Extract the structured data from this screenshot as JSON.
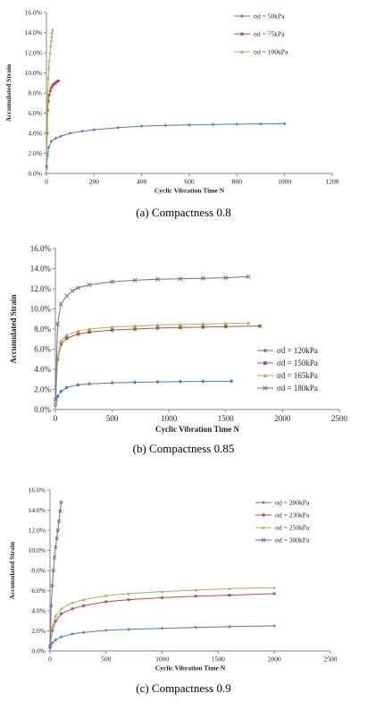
{
  "figure": {
    "captions": [
      "(a) Compactness 0.8",
      "(b) Compactness 0.85",
      "(c) Compactness 0.9"
    ]
  },
  "chart_data": [
    {
      "type": "line",
      "xlabel": "Cyclic Vibration Time N",
      "ylabel": "Accumulated Strain",
      "xlim": [
        0,
        1200
      ],
      "ylim": [
        0,
        16
      ],
      "xticks": [
        0,
        200,
        400,
        600,
        800,
        1000,
        1200
      ],
      "xtick_labels": [
        "0",
        "200",
        "400",
        "600",
        "800",
        "1000",
        "1200"
      ],
      "yticks": [
        0,
        2,
        4,
        6,
        8,
        10,
        12,
        14,
        16
      ],
      "ytick_labels": [
        "0.0%",
        "2.0%",
        "4.0%",
        "6.0%",
        "8.0%",
        "10.0%",
        "12.0%",
        "14.0%",
        "16.0%"
      ],
      "grid": false,
      "legend_position": "top-right",
      "series": [
        {
          "name": "σd = 50kPa",
          "color": "#4a7ebb",
          "marker": "diamond",
          "x": [
            1,
            5,
            10,
            20,
            40,
            60,
            100,
            150,
            200,
            300,
            400,
            500,
            600,
            700,
            800,
            900,
            1000
          ],
          "y": [
            0.6,
            1.8,
            2.6,
            3.2,
            3.5,
            3.7,
            4.0,
            4.2,
            4.35,
            4.55,
            4.7,
            4.78,
            4.83,
            4.87,
            4.9,
            4.93,
            4.95
          ]
        },
        {
          "name": "σd = 75kPa",
          "color": "#be4b48",
          "marker": "square",
          "x": [
            1,
            3,
            5,
            8,
            12,
            16,
            20,
            25,
            30,
            35,
            40,
            45,
            50
          ],
          "y": [
            0.7,
            4.0,
            6.3,
            7.2,
            7.8,
            8.2,
            8.5,
            8.7,
            8.85,
            8.95,
            9.05,
            9.15,
            9.2
          ]
        },
        {
          "name": "σd = 100kPa",
          "color": "#98b954",
          "marker": "triangle",
          "x": [
            1,
            3,
            5,
            8,
            10,
            12,
            15,
            18,
            20,
            22,
            24,
            26
          ],
          "y": [
            0.5,
            4.5,
            7.5,
            9.5,
            10.5,
            11.2,
            12.0,
            12.7,
            13.2,
            13.6,
            14.0,
            14.3
          ]
        }
      ]
    },
    {
      "type": "line",
      "xlabel": "Cyclic Vibration Time N",
      "ylabel": "Accumulated Strain",
      "xlim": [
        0,
        2500
      ],
      "ylim": [
        0,
        16
      ],
      "xticks": [
        0,
        500,
        1000,
        1500,
        2000,
        2500
      ],
      "xtick_labels": [
        "0",
        "500",
        "1000",
        "1500",
        "2000",
        "2500"
      ],
      "yticks": [
        0,
        2,
        4,
        6,
        8,
        10,
        12,
        14,
        16
      ],
      "ytick_labels": [
        "0.0%",
        "2.0%",
        "4.0%",
        "6.0%",
        "8.0%",
        "10.0%",
        "12.0%",
        "14.0%",
        "16.0%"
      ],
      "grid": false,
      "legend_position": "right",
      "series": [
        {
          "name": "σd = 120kPa",
          "color": "#4a7ebb",
          "marker": "diamond",
          "x": [
            1,
            20,
            50,
            100,
            200,
            300,
            500,
            700,
            900,
            1100,
            1300,
            1550
          ],
          "y": [
            0.4,
            1.3,
            1.8,
            2.2,
            2.45,
            2.55,
            2.65,
            2.7,
            2.75,
            2.78,
            2.8,
            2.82
          ]
        },
        {
          "name": "σd = 150kPa",
          "color": "#be4b48",
          "marker": "square",
          "x": [
            1,
            20,
            50,
            100,
            200,
            300,
            500,
            700,
            900,
            1100,
            1300,
            1500,
            1800
          ],
          "y": [
            0.5,
            5.0,
            6.5,
            7.1,
            7.5,
            7.7,
            7.9,
            8.0,
            8.1,
            8.15,
            8.2,
            8.25,
            8.3
          ]
        },
        {
          "name": "σd = 165kPa",
          "color": "#98b954",
          "marker": "triangle",
          "x": [
            1,
            20,
            50,
            100,
            200,
            300,
            500,
            700,
            900,
            1100,
            1300,
            1500,
            1700
          ],
          "y": [
            0.5,
            5.2,
            6.8,
            7.4,
            7.8,
            8.0,
            8.2,
            8.3,
            8.4,
            8.45,
            8.5,
            8.55,
            8.6
          ]
        },
        {
          "name": "σd = 180kPa",
          "color": "#7e62a1",
          "marker": "x",
          "x": [
            1,
            20,
            50,
            100,
            150,
            200,
            300,
            500,
            700,
            900,
            1100,
            1300,
            1500,
            1700
          ],
          "y": [
            1.0,
            8.5,
            10.5,
            11.3,
            11.8,
            12.1,
            12.4,
            12.7,
            12.85,
            12.95,
            13.0,
            13.05,
            13.1,
            13.2
          ]
        }
      ]
    },
    {
      "type": "line",
      "xlabel": "Cyclic Vibration Time N",
      "ylabel": "Accumulated Strain",
      "xlim": [
        0,
        2500
      ],
      "ylim": [
        0,
        16
      ],
      "xticks": [
        0,
        500,
        1000,
        1500,
        2000,
        2500
      ],
      "xtick_labels": [
        "0",
        "500",
        "1000",
        "1500",
        "2000",
        "2500"
      ],
      "yticks": [
        0,
        2,
        4,
        6,
        8,
        10,
        12,
        14,
        16
      ],
      "ytick_labels": [
        "0.0%",
        "2.0%",
        "4.0%",
        "6.0%",
        "8.0%",
        "10.0%",
        "12.0%",
        "14.0%",
        "16.0%"
      ],
      "grid": false,
      "legend_position": "top-right",
      "series": [
        {
          "name": "σd = 200kPa",
          "color": "#4a7ebb",
          "marker": "diamond",
          "x": [
            1,
            20,
            50,
            100,
            200,
            300,
            500,
            700,
            1000,
            1300,
            1600,
            2000
          ],
          "y": [
            0.3,
            0.8,
            1.1,
            1.4,
            1.7,
            1.85,
            2.05,
            2.15,
            2.25,
            2.35,
            2.42,
            2.5
          ]
        },
        {
          "name": "σd = 230kPa",
          "color": "#be4b48",
          "marker": "square",
          "x": [
            1,
            20,
            50,
            100,
            200,
            300,
            500,
            700,
            1000,
            1300,
            1600,
            2000
          ],
          "y": [
            0.5,
            2.0,
            3.0,
            3.7,
            4.2,
            4.5,
            4.9,
            5.1,
            5.3,
            5.45,
            5.55,
            5.7
          ]
        },
        {
          "name": "σd = 250kPa",
          "color": "#98b954",
          "marker": "triangle",
          "x": [
            1,
            20,
            50,
            100,
            200,
            300,
            500,
            700,
            1000,
            1300,
            1600,
            2000
          ],
          "y": [
            0.5,
            2.4,
            3.5,
            4.2,
            4.8,
            5.1,
            5.5,
            5.7,
            5.9,
            6.05,
            6.2,
            6.3
          ]
        },
        {
          "name": "σd = 300kPa",
          "color": "#7e62a1",
          "marker": "x",
          "x": [
            1,
            10,
            20,
            30,
            40,
            50,
            60,
            70,
            80,
            90,
            100
          ],
          "y": [
            0.5,
            4.5,
            6.5,
            8.0,
            9.3,
            10.3,
            11.2,
            12.0,
            12.9,
            13.9,
            14.8
          ]
        }
      ]
    }
  ]
}
